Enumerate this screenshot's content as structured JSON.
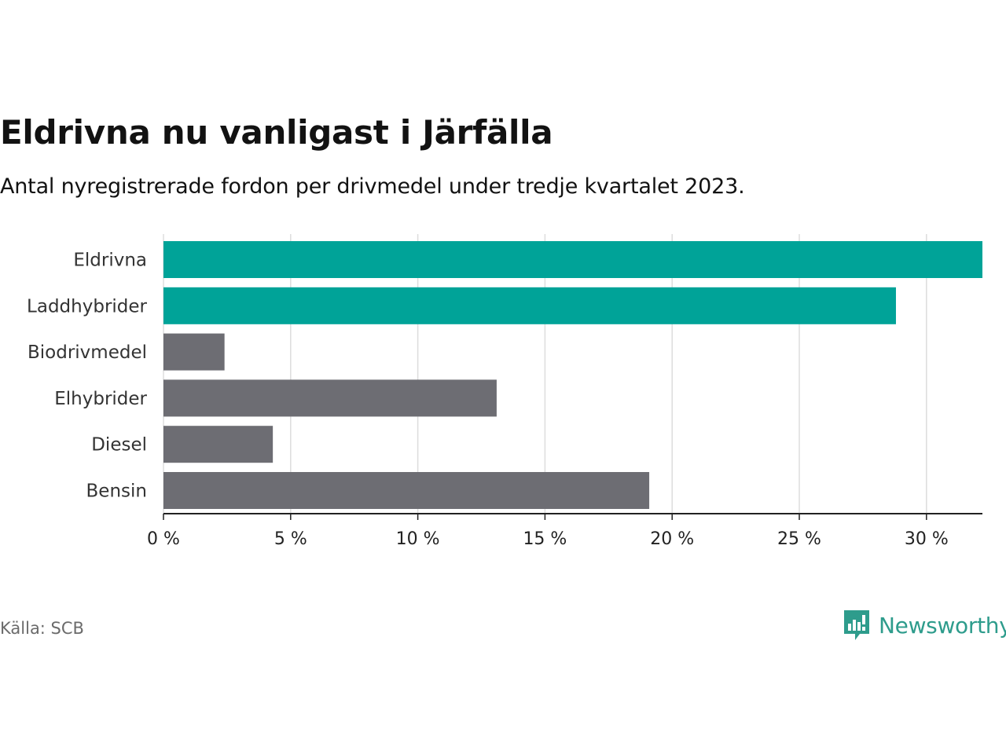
{
  "title": "Eldrivna nu vanligast i Järfälla",
  "subtitle": "Antal nyregistrerade fordon per drivmedel under tredje kvartalet 2023.",
  "source": "Källa: SCB",
  "brand": {
    "name": "Newsworthy",
    "icon": "newsworthy-logo-icon",
    "color": "#2e9c8c"
  },
  "colors": {
    "highlight": "#00a398",
    "default": "#6d6d73",
    "grid": "#dddddd",
    "axis": "#222222"
  },
  "chart_data": {
    "type": "bar",
    "orientation": "horizontal",
    "title": "Eldrivna nu vanligast i Järfälla",
    "subtitle": "Antal nyregistrerade fordon per drivmedel under tredje kvartalet 2023.",
    "xlabel": "",
    "ylabel": "",
    "unit": "%",
    "categories": [
      "Eldrivna",
      "Laddhybrider",
      "Biodrivmedel",
      "Elhybrider",
      "Diesel",
      "Bensin"
    ],
    "values": [
      32.2,
      28.8,
      2.4,
      13.1,
      4.3,
      19.1
    ],
    "highlighted": [
      true,
      true,
      false,
      false,
      false,
      false
    ],
    "xlim": [
      0,
      32.2
    ],
    "ticks": [
      0,
      5,
      10,
      15,
      20,
      25,
      30
    ],
    "tick_labels": [
      "0 %",
      "5 %",
      "10 %",
      "15 %",
      "20 %",
      "25 %",
      "30 %"
    ],
    "grid": true,
    "legend": "none"
  }
}
